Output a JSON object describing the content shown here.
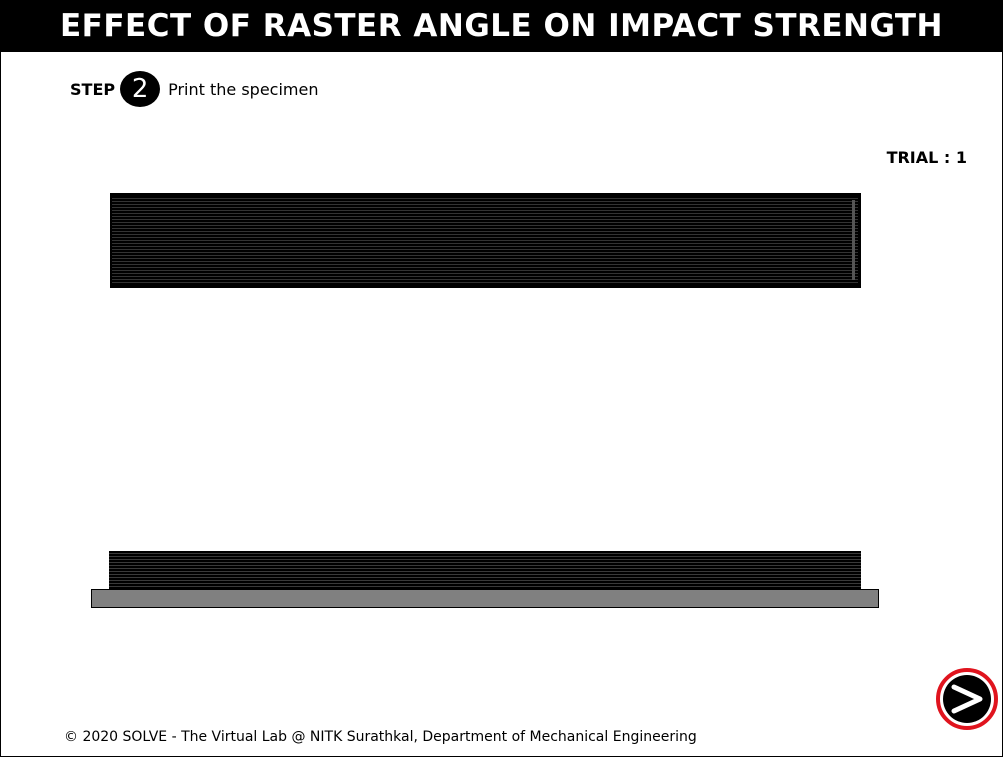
{
  "header": {
    "title": "EFFECT OF RASTER ANGLE ON IMPACT STRENGTH"
  },
  "step": {
    "label": "STEP",
    "number": "2",
    "description": "Print the specimen"
  },
  "trial": {
    "text": "TRIAL : 1"
  },
  "colors": {
    "title_bar": "#000000",
    "specimen": "#000000",
    "print_bed": "#808080",
    "next_button_ring": "#e0141e"
  },
  "icons": {
    "next": "chevron-right-icon"
  },
  "footer": {
    "text": "© 2020 SOLVE - The Virtual Lab @ NITK Surathkal, Department of Mechanical Engineering"
  }
}
